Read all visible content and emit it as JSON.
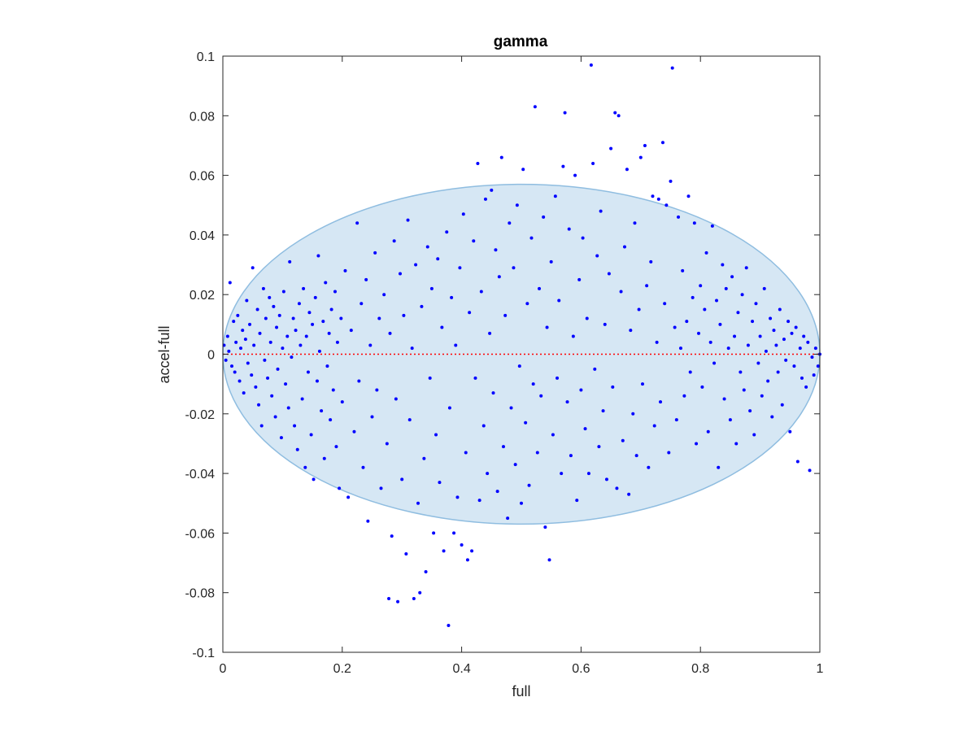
{
  "chart_data": {
    "type": "scatter",
    "title": "gamma",
    "xlabel": "full",
    "ylabel": "accel-full",
    "xlim": [
      0,
      1
    ],
    "ylim": [
      -0.1,
      0.1
    ],
    "xticks": [
      0,
      0.2,
      0.4,
      0.6,
      0.8,
      1
    ],
    "xtick_labels": [
      "0",
      "0.2",
      "0.4",
      "0.6",
      "0.8",
      "1"
    ],
    "yticks": [
      -0.1,
      -0.08,
      -0.06,
      -0.04,
      -0.02,
      0,
      0.02,
      0.04,
      0.06,
      0.08,
      0.1
    ],
    "ytick_labels": [
      "-0.1",
      "-0.08",
      "-0.06",
      "-0.04",
      "-0.02",
      "0",
      "0.02",
      "0.04",
      "0.06",
      "0.08",
      "0.1"
    ],
    "grid": false,
    "reference_line": {
      "y": 0,
      "style": "dotted",
      "color": "#ff0000"
    },
    "ellipse": {
      "cx": 0.5,
      "cy": 0,
      "rx": 0.5,
      "ry": 0.057,
      "fill": "#d6e7f4",
      "stroke": "#8fbde0"
    },
    "point_color": "#0000ff",
    "points": [
      [
        0.002,
        0.003
      ],
      [
        0.005,
        -0.002
      ],
      [
        0.008,
        0.006
      ],
      [
        0.01,
        0.001
      ],
      [
        0.012,
        0.024
      ],
      [
        0.015,
        -0.004
      ],
      [
        0.018,
        0.011
      ],
      [
        0.02,
        -0.006
      ],
      [
        0.022,
        0.004
      ],
      [
        0.025,
        0.013
      ],
      [
        0.028,
        -0.009
      ],
      [
        0.03,
        0.002
      ],
      [
        0.033,
        0.008
      ],
      [
        0.035,
        -0.013
      ],
      [
        0.038,
        0.005
      ],
      [
        0.04,
        0.018
      ],
      [
        0.042,
        -0.003
      ],
      [
        0.045,
        0.01
      ],
      [
        0.048,
        -0.007
      ],
      [
        0.05,
        0.029
      ],
      [
        0.052,
        0.003
      ],
      [
        0.055,
        -0.011
      ],
      [
        0.058,
        0.015
      ],
      [
        0.06,
        -0.017
      ],
      [
        0.062,
        0.007
      ],
      [
        0.065,
        -0.024
      ],
      [
        0.068,
        0.022
      ],
      [
        0.07,
        -0.002
      ],
      [
        0.072,
        0.012
      ],
      [
        0.075,
        -0.008
      ],
      [
        0.078,
        0.019
      ],
      [
        0.08,
        0.004
      ],
      [
        0.082,
        -0.014
      ],
      [
        0.085,
        0.016
      ],
      [
        0.088,
        -0.021
      ],
      [
        0.09,
        0.009
      ],
      [
        0.092,
        -0.005
      ],
      [
        0.095,
        0.013
      ],
      [
        0.098,
        -0.028
      ],
      [
        0.1,
        0.002
      ],
      [
        0.102,
        0.021
      ],
      [
        0.105,
        -0.01
      ],
      [
        0.108,
        0.006
      ],
      [
        0.11,
        -0.018
      ],
      [
        0.112,
        0.031
      ],
      [
        0.115,
        -0.001
      ],
      [
        0.118,
        0.012
      ],
      [
        0.12,
        -0.024
      ],
      [
        0.122,
        0.008
      ],
      [
        0.125,
        -0.032
      ],
      [
        0.128,
        0.017
      ],
      [
        0.13,
        0.003
      ],
      [
        0.133,
        -0.015
      ],
      [
        0.135,
        0.022
      ],
      [
        0.138,
        -0.038
      ],
      [
        0.14,
        0.006
      ],
      [
        0.143,
        -0.006
      ],
      [
        0.145,
        0.014
      ],
      [
        0.148,
        -0.027
      ],
      [
        0.15,
        0.01
      ],
      [
        0.152,
        -0.042
      ],
      [
        0.155,
        0.019
      ],
      [
        0.158,
        -0.009
      ],
      [
        0.16,
        0.033
      ],
      [
        0.162,
        0.001
      ],
      [
        0.165,
        -0.019
      ],
      [
        0.168,
        0.011
      ],
      [
        0.17,
        -0.035
      ],
      [
        0.172,
        0.024
      ],
      [
        0.175,
        -0.004
      ],
      [
        0.178,
        0.007
      ],
      [
        0.18,
        -0.022
      ],
      [
        0.182,
        0.015
      ],
      [
        0.185,
        -0.012
      ],
      [
        0.188,
        0.021
      ],
      [
        0.19,
        -0.031
      ],
      [
        0.192,
        0.004
      ],
      [
        0.195,
        -0.045
      ],
      [
        0.198,
        0.012
      ],
      [
        0.2,
        -0.016
      ],
      [
        0.205,
        0.028
      ],
      [
        0.21,
        -0.048
      ],
      [
        0.215,
        0.008
      ],
      [
        0.22,
        -0.026
      ],
      [
        0.225,
        0.044
      ],
      [
        0.228,
        -0.009
      ],
      [
        0.232,
        0.017
      ],
      [
        0.235,
        -0.038
      ],
      [
        0.24,
        0.025
      ],
      [
        0.243,
        -0.056
      ],
      [
        0.247,
        0.003
      ],
      [
        0.25,
        -0.021
      ],
      [
        0.255,
        0.034
      ],
      [
        0.258,
        -0.012
      ],
      [
        0.262,
        0.012
      ],
      [
        0.265,
        -0.045
      ],
      [
        0.27,
        0.02
      ],
      [
        0.275,
        -0.03
      ],
      [
        0.278,
        -0.082
      ],
      [
        0.28,
        0.007
      ],
      [
        0.283,
        -0.061
      ],
      [
        0.287,
        0.038
      ],
      [
        0.29,
        -0.015
      ],
      [
        0.293,
        -0.083
      ],
      [
        0.297,
        0.027
      ],
      [
        0.3,
        -0.042
      ],
      [
        0.303,
        0.013
      ],
      [
        0.307,
        -0.067
      ],
      [
        0.31,
        0.045
      ],
      [
        0.313,
        -0.022
      ],
      [
        0.317,
        0.002
      ],
      [
        0.32,
        -0.082
      ],
      [
        0.323,
        0.03
      ],
      [
        0.327,
        -0.05
      ],
      [
        0.33,
        -0.08
      ],
      [
        0.333,
        0.016
      ],
      [
        0.337,
        -0.035
      ],
      [
        0.34,
        -0.073
      ],
      [
        0.343,
        0.036
      ],
      [
        0.347,
        -0.008
      ],
      [
        0.35,
        0.022
      ],
      [
        0.353,
        -0.06
      ],
      [
        0.357,
        -0.027
      ],
      [
        0.36,
        0.032
      ],
      [
        0.363,
        -0.043
      ],
      [
        0.367,
        0.009
      ],
      [
        0.37,
        -0.066
      ],
      [
        0.375,
        0.041
      ],
      [
        0.378,
        -0.091
      ],
      [
        0.38,
        -0.018
      ],
      [
        0.383,
        0.019
      ],
      [
        0.387,
        -0.06
      ],
      [
        0.39,
        0.003
      ],
      [
        0.393,
        -0.048
      ],
      [
        0.397,
        0.029
      ],
      [
        0.4,
        -0.064
      ],
      [
        0.403,
        0.047
      ],
      [
        0.407,
        -0.033
      ],
      [
        0.41,
        -0.069
      ],
      [
        0.413,
        0.014
      ],
      [
        0.417,
        -0.066
      ],
      [
        0.42,
        0.038
      ],
      [
        0.423,
        -0.008
      ],
      [
        0.427,
        0.064
      ],
      [
        0.43,
        -0.049
      ],
      [
        0.433,
        0.021
      ],
      [
        0.437,
        -0.024
      ],
      [
        0.44,
        0.052
      ],
      [
        0.443,
        -0.04
      ],
      [
        0.447,
        0.007
      ],
      [
        0.45,
        0.055
      ],
      [
        0.453,
        -0.013
      ],
      [
        0.457,
        0.035
      ],
      [
        0.46,
        -0.046
      ],
      [
        0.463,
        0.026
      ],
      [
        0.467,
        0.066
      ],
      [
        0.47,
        -0.031
      ],
      [
        0.473,
        0.013
      ],
      [
        0.477,
        -0.055
      ],
      [
        0.48,
        0.044
      ],
      [
        0.483,
        -0.018
      ],
      [
        0.487,
        0.029
      ],
      [
        0.49,
        -0.037
      ],
      [
        0.493,
        0.05
      ],
      [
        0.497,
        -0.004
      ],
      [
        0.5,
        -0.05
      ],
      [
        0.503,
        0.062
      ],
      [
        0.507,
        -0.023
      ],
      [
        0.51,
        0.017
      ],
      [
        0.513,
        -0.044
      ],
      [
        0.517,
        0.039
      ],
      [
        0.52,
        -0.01
      ],
      [
        0.523,
        0.083
      ],
      [
        0.527,
        -0.033
      ],
      [
        0.53,
        0.022
      ],
      [
        0.533,
        -0.014
      ],
      [
        0.537,
        0.046
      ],
      [
        0.54,
        -0.058
      ],
      [
        0.543,
        0.009
      ],
      [
        0.547,
        -0.069
      ],
      [
        0.55,
        0.031
      ],
      [
        0.553,
        -0.027
      ],
      [
        0.557,
        0.053
      ],
      [
        0.56,
        -0.008
      ],
      [
        0.563,
        0.018
      ],
      [
        0.567,
        -0.04
      ],
      [
        0.57,
        0.063
      ],
      [
        0.573,
        0.081
      ],
      [
        0.577,
        -0.016
      ],
      [
        0.58,
        0.042
      ],
      [
        0.583,
        -0.034
      ],
      [
        0.587,
        0.006
      ],
      [
        0.59,
        0.06
      ],
      [
        0.593,
        -0.049
      ],
      [
        0.597,
        0.025
      ],
      [
        0.6,
        -0.012
      ],
      [
        0.603,
        0.039
      ],
      [
        0.607,
        -0.025
      ],
      [
        0.61,
        0.012
      ],
      [
        0.613,
        -0.04
      ],
      [
        0.617,
        0.097
      ],
      [
        0.62,
        0.064
      ],
      [
        0.623,
        -0.005
      ],
      [
        0.627,
        0.033
      ],
      [
        0.63,
        -0.031
      ],
      [
        0.633,
        0.048
      ],
      [
        0.637,
        -0.019
      ],
      [
        0.64,
        0.01
      ],
      [
        0.643,
        -0.042
      ],
      [
        0.647,
        0.027
      ],
      [
        0.65,
        0.069
      ],
      [
        0.653,
        -0.011
      ],
      [
        0.657,
        0.081
      ],
      [
        0.66,
        -0.045
      ],
      [
        0.663,
        0.08
      ],
      [
        0.667,
        0.021
      ],
      [
        0.67,
        -0.029
      ],
      [
        0.673,
        0.036
      ],
      [
        0.677,
        0.062
      ],
      [
        0.68,
        -0.047
      ],
      [
        0.683,
        0.008
      ],
      [
        0.687,
        -0.02
      ],
      [
        0.69,
        0.044
      ],
      [
        0.693,
        -0.034
      ],
      [
        0.697,
        0.015
      ],
      [
        0.7,
        0.066
      ],
      [
        0.703,
        -0.01
      ],
      [
        0.707,
        0.07
      ],
      [
        0.71,
        0.023
      ],
      [
        0.713,
        -0.038
      ],
      [
        0.717,
        0.031
      ],
      [
        0.72,
        0.053
      ],
      [
        0.723,
        -0.024
      ],
      [
        0.727,
        0.004
      ],
      [
        0.73,
        0.052
      ],
      [
        0.733,
        -0.016
      ],
      [
        0.737,
        0.071
      ],
      [
        0.74,
        0.017
      ],
      [
        0.743,
        0.05
      ],
      [
        0.747,
        -0.033
      ],
      [
        0.75,
        0.058
      ],
      [
        0.753,
        0.096
      ],
      [
        0.757,
        0.009
      ],
      [
        0.76,
        -0.022
      ],
      [
        0.763,
        0.046
      ],
      [
        0.767,
        0.002
      ],
      [
        0.77,
        0.028
      ],
      [
        0.773,
        -0.014
      ],
      [
        0.777,
        0.011
      ],
      [
        0.78,
        0.053
      ],
      [
        0.783,
        -0.006
      ],
      [
        0.787,
        0.019
      ],
      [
        0.79,
        0.044
      ],
      [
        0.793,
        -0.03
      ],
      [
        0.797,
        0.007
      ],
      [
        0.8,
        0.023
      ],
      [
        0.803,
        -0.011
      ],
      [
        0.807,
        0.015
      ],
      [
        0.81,
        0.034
      ],
      [
        0.813,
        -0.026
      ],
      [
        0.817,
        0.004
      ],
      [
        0.82,
        0.043
      ],
      [
        0.823,
        -0.003
      ],
      [
        0.827,
        0.018
      ],
      [
        0.83,
        -0.038
      ],
      [
        0.833,
        0.01
      ],
      [
        0.837,
        0.03
      ],
      [
        0.84,
        -0.015
      ],
      [
        0.843,
        0.022
      ],
      [
        0.847,
        0.002
      ],
      [
        0.85,
        -0.022
      ],
      [
        0.853,
        0.026
      ],
      [
        0.857,
        0.006
      ],
      [
        0.86,
        -0.03
      ],
      [
        0.863,
        0.014
      ],
      [
        0.867,
        -0.006
      ],
      [
        0.87,
        0.02
      ],
      [
        0.873,
        -0.012
      ],
      [
        0.877,
        0.029
      ],
      [
        0.88,
        0.003
      ],
      [
        0.883,
        -0.019
      ],
      [
        0.887,
        0.011
      ],
      [
        0.89,
        -0.027
      ],
      [
        0.893,
        0.017
      ],
      [
        0.897,
        -0.003
      ],
      [
        0.9,
        0.006
      ],
      [
        0.903,
        -0.014
      ],
      [
        0.907,
        0.022
      ],
      [
        0.91,
        0.001
      ],
      [
        0.913,
        -0.009
      ],
      [
        0.917,
        0.012
      ],
      [
        0.92,
        -0.021
      ],
      [
        0.923,
        0.008
      ],
      [
        0.927,
        0.003
      ],
      [
        0.93,
        -0.006
      ],
      [
        0.933,
        0.015
      ],
      [
        0.937,
        -0.017
      ],
      [
        0.94,
        0.005
      ],
      [
        0.943,
        -0.002
      ],
      [
        0.947,
        0.011
      ],
      [
        0.95,
        -0.026
      ],
      [
        0.953,
        0.007
      ],
      [
        0.957,
        -0.004
      ],
      [
        0.96,
        0.009
      ],
      [
        0.963,
        -0.036
      ],
      [
        0.967,
        0.002
      ],
      [
        0.97,
        -0.008
      ],
      [
        0.973,
        0.006
      ],
      [
        0.977,
        -0.011
      ],
      [
        0.98,
        0.004
      ],
      [
        0.983,
        -0.039
      ],
      [
        0.987,
        -0.001
      ],
      [
        0.99,
        -0.007
      ],
      [
        0.993,
        0.002
      ],
      [
        0.997,
        -0.004
      ],
      [
        1.0,
        0.0
      ]
    ]
  }
}
